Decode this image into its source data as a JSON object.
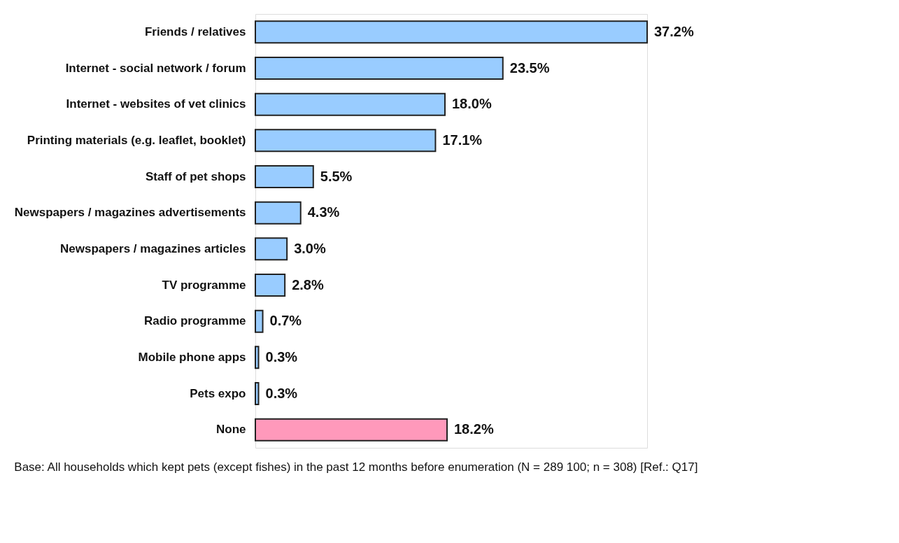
{
  "chart_data": {
    "type": "bar",
    "orientation": "horizontal",
    "categories": [
      "Friends / relatives",
      "Internet - social network / forum",
      "Internet - websites of vet clinics",
      "Printing materials (e.g. leaflet, booklet)",
      "Staff of pet shops",
      "Newspapers / magazines advertisements",
      "Newspapers / magazines articles",
      "TV programme",
      "Radio programme",
      "Mobile phone apps",
      "Pets expo",
      "None"
    ],
    "values": [
      37.2,
      23.5,
      18.0,
      17.1,
      5.5,
      4.3,
      3.0,
      2.8,
      0.7,
      0.3,
      0.3,
      18.2
    ],
    "value_labels": [
      "37.2%",
      "23.5%",
      "18.0%",
      "17.1%",
      "5.5%",
      "4.3%",
      "3.0%",
      "2.8%",
      "0.7%",
      "0.3%",
      "0.3%",
      "18.2%"
    ],
    "colors": [
      "#99ccff",
      "#99ccff",
      "#99ccff",
      "#99ccff",
      "#99ccff",
      "#99ccff",
      "#99ccff",
      "#99ccff",
      "#99ccff",
      "#99ccff",
      "#99ccff",
      "#ff99bb"
    ],
    "annotations": [
      "Base: All households which kept pets (except fishes) in the past 12 months before enumeration (N = 289 100; n = 308) [Ref.: Q17]"
    ]
  }
}
